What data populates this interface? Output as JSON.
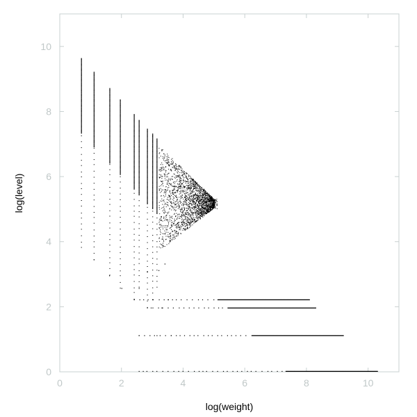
{
  "chart_data": {
    "type": "scatter",
    "title": "",
    "xlabel": "log(weight)",
    "ylabel": "log(level)",
    "xlim": [
      0,
      11
    ],
    "ylim": [
      0,
      11
    ],
    "x_ticks": [
      "0",
      "2",
      "4",
      "6",
      "8",
      "10"
    ],
    "y_ticks": [
      "0",
      "2",
      "4",
      "6",
      "8",
      "10"
    ],
    "grid": false,
    "legend": "none",
    "point_color": "#000000",
    "axis_color": "#c8d0d0",
    "tick_color": "#c0c8c8",
    "features": {
      "vertical_columns": [
        {
          "x": 0.69,
          "y_min": 3.78,
          "y_max": 9.62
        },
        {
          "x": 1.1,
          "y_min": 3.43,
          "y_max": 9.2
        },
        {
          "x": 1.61,
          "y_min": 2.94,
          "y_max": 8.7
        },
        {
          "x": 1.95,
          "y_min": 2.55,
          "y_max": 8.35
        },
        {
          "x": 2.4,
          "y_min": 2.2,
          "y_max": 7.9
        },
        {
          "x": 2.56,
          "y_min": 2.55,
          "y_max": 7.72
        },
        {
          "x": 2.83,
          "y_min": 1.95,
          "y_max": 7.45
        },
        {
          "x": 3.0,
          "y_min": 2.2,
          "y_max": 7.3
        },
        {
          "x": 3.14,
          "y_min": 2.55,
          "y_max": 7.15
        }
      ],
      "triangle_apex": {
        "x": 5.1,
        "y": 5.15
      },
      "horizontal_bands": [
        {
          "y": 2.2,
          "x_min": 2.4,
          "x_max": 8.1
        },
        {
          "y": 1.95,
          "x_min": 2.83,
          "x_max": 8.3
        },
        {
          "y": 1.1,
          "x_min": 2.56,
          "x_max": 9.2
        },
        {
          "y": 0.0,
          "x_min": 2.56,
          "x_max": 10.3
        }
      ]
    }
  }
}
